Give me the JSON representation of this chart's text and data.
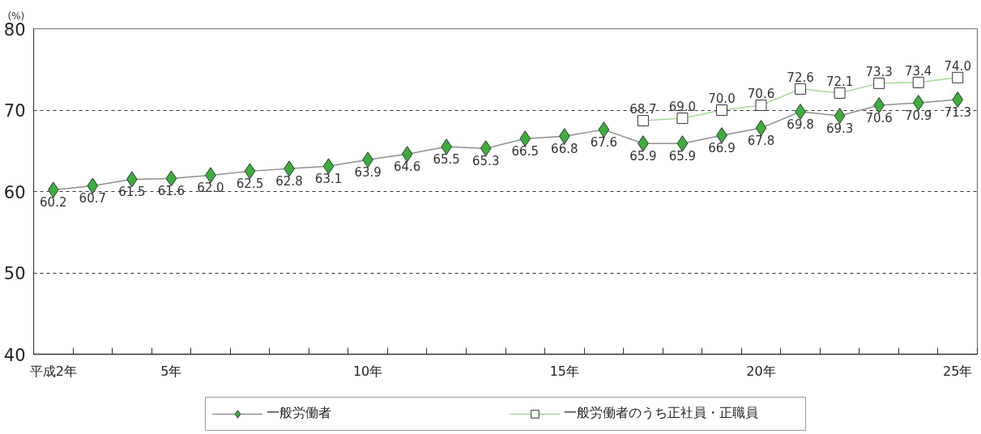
{
  "chart_data": {
    "type": "line",
    "ylabel": "(%)",
    "categories": [
      "平成2年",
      null,
      null,
      "5年",
      null,
      null,
      null,
      null,
      "10年",
      null,
      null,
      null,
      null,
      "15年",
      null,
      null,
      null,
      null,
      "20年",
      null,
      null,
      null,
      null,
      "25年"
    ],
    "series": [
      {
        "name": "一般労働者",
        "color": "#3cae3c",
        "marker": "diamond",
        "values": [
          60.2,
          60.7,
          61.5,
          61.6,
          62.0,
          62.5,
          62.8,
          63.1,
          63.9,
          64.6,
          65.5,
          65.3,
          66.5,
          66.8,
          67.6,
          65.9,
          65.9,
          66.9,
          67.8,
          69.8,
          69.3,
          70.6,
          70.9,
          71.3
        ],
        "value_labels": [
          "60.2",
          "60.7",
          "61.5",
          "61.6",
          "62.0",
          "62.5",
          "62.8",
          "63.1",
          "63.9",
          "64.6",
          "65.5",
          "65.3",
          "66.5",
          "66.8",
          "67.6",
          "65.9",
          "65.9",
          "66.9",
          "67.8",
          "69.8",
          "69.3",
          "70.6",
          "70.9",
          "71.3"
        ]
      },
      {
        "name": "一般労働者のうち正社員・正職員",
        "color": "#a6d99a",
        "marker": "square",
        "values": [
          null,
          null,
          null,
          null,
          null,
          null,
          null,
          null,
          null,
          null,
          null,
          null,
          null,
          null,
          null,
          68.7,
          69.0,
          70.0,
          70.6,
          72.6,
          72.1,
          73.3,
          73.4,
          74.0
        ],
        "value_labels": [
          null,
          null,
          null,
          null,
          null,
          null,
          null,
          null,
          null,
          null,
          null,
          null,
          null,
          null,
          null,
          "68.7",
          "69.0",
          "70.0",
          "70.6",
          "72.6",
          "72.1",
          "73.3",
          "73.4",
          "74.0"
        ]
      }
    ],
    "ylim": [
      40,
      80
    ],
    "yticks": [
      40,
      50,
      60,
      70,
      80
    ],
    "grid": "y",
    "legend": "bottom",
    "line_style": "solid"
  }
}
